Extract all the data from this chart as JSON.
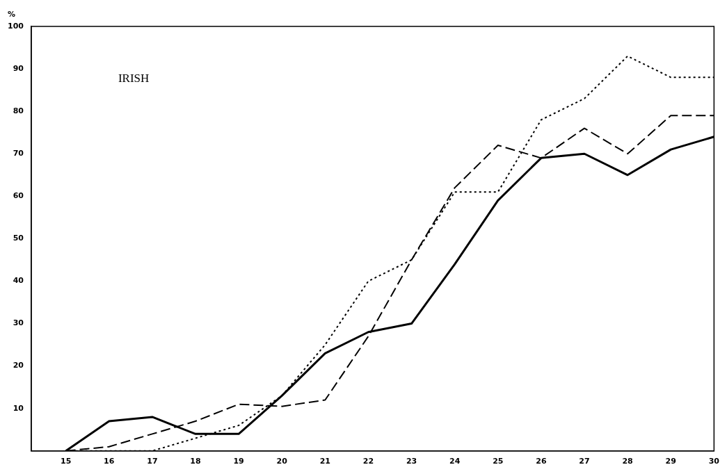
{
  "chart_data": {
    "type": "line",
    "ylabel": "%",
    "annotations": [
      "IRISH"
    ],
    "x": [
      15,
      16,
      17,
      18,
      19,
      20,
      21,
      22,
      23,
      24,
      25,
      26,
      27,
      28,
      29,
      30
    ],
    "xlim": [
      14.2,
      30
    ],
    "xticks": [
      15,
      16,
      17,
      18,
      19,
      20,
      21,
      22,
      23,
      24,
      25,
      26,
      27,
      28,
      29,
      30
    ],
    "ylim": [
      0,
      100
    ],
    "yticks": [
      10,
      20,
      30,
      40,
      50,
      60,
      70,
      80,
      90,
      100
    ],
    "grid": false,
    "legend": false,
    "marker": "none",
    "series": [
      {
        "color": "#000000",
        "line_style": "solid",
        "values": [
          0,
          7,
          8,
          4,
          4,
          13,
          23,
          28,
          30,
          44,
          59,
          69,
          70,
          65,
          71,
          74
        ]
      },
      {
        "color": "#000000",
        "line_style": "dashed",
        "values": [
          0,
          1,
          4,
          7,
          11,
          10.5,
          12,
          27,
          45,
          62,
          72,
          69,
          76,
          70,
          79,
          79
        ]
      },
      {
        "color": "#000000",
        "line_style": "dotted",
        "values": [
          0,
          0,
          0,
          3,
          6,
          13,
          25,
          40,
          45,
          61,
          61,
          78,
          83,
          93,
          88,
          88
        ]
      }
    ]
  }
}
